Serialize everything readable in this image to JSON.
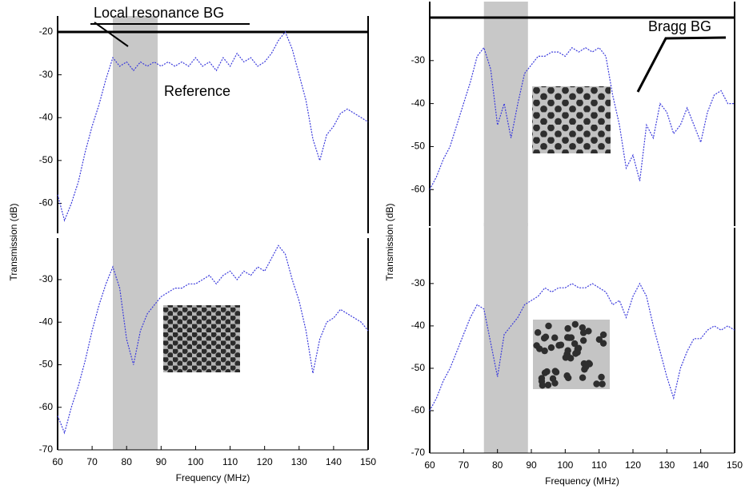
{
  "chart_data": [
    {
      "type": "line",
      "annotations": [
        "Local resonance BG",
        "Reference"
      ],
      "shaded_band": [
        76,
        89
      ],
      "x": [
        60,
        62,
        64,
        66,
        68,
        70,
        72,
        74,
        76,
        78,
        80,
        82,
        84,
        86,
        88,
        90,
        92,
        94,
        96,
        98,
        100,
        102,
        104,
        106,
        108,
        110,
        112,
        114,
        116,
        118,
        120,
        122,
        124,
        126,
        128,
        130,
        132,
        134,
        136,
        138,
        140,
        142,
        144,
        146,
        148,
        150
      ],
      "series": [
        {
          "color": "#3b3bdc",
          "values": [
            -58,
            -64,
            -60,
            -55,
            -48,
            -42,
            -37,
            -31,
            -26,
            -28,
            -27,
            -29,
            -27,
            -28,
            -27,
            -28,
            -27,
            -28,
            -27,
            -28,
            -26,
            -28,
            -27,
            -29,
            -26,
            -28,
            -25,
            -27,
            -26,
            -28,
            -27,
            -25,
            -22,
            -20,
            -24,
            -30,
            -36,
            -45,
            -50,
            -44,
            -42,
            -39,
            -38,
            -39,
            -40,
            -41
          ]
        }
      ],
      "xlim": [
        60,
        150
      ],
      "ylim": [
        -67,
        -20
      ],
      "yticks": [
        -20,
        -30,
        -40,
        -50,
        -60
      ]
    },
    {
      "type": "line",
      "xlabel": "Frequency (MHz)",
      "ylabel": "Transmission (dB)",
      "shaded_band": [
        76,
        89
      ],
      "x": [
        60,
        62,
        64,
        66,
        68,
        70,
        72,
        74,
        76,
        78,
        80,
        82,
        84,
        86,
        88,
        90,
        92,
        94,
        96,
        98,
        100,
        102,
        104,
        106,
        108,
        110,
        112,
        114,
        116,
        118,
        120,
        122,
        124,
        126,
        128,
        130,
        132,
        134,
        136,
        138,
        140,
        142,
        144,
        146,
        148,
        150
      ],
      "series": [
        {
          "color": "#3b3bdc",
          "values": [
            -62,
            -66,
            -60,
            -55,
            -49,
            -42,
            -36,
            -31,
            -27,
            -32,
            -44,
            -50,
            -42,
            -38,
            -36,
            -34,
            -33,
            -32,
            -32,
            -31,
            -31,
            -30,
            -29,
            -31,
            -29,
            -28,
            -30,
            -28,
            -29,
            -27,
            -28,
            -25,
            -22,
            -24,
            -30,
            -35,
            -42,
            -52,
            -44,
            -40,
            -39,
            -37,
            -38,
            -39,
            -40,
            -42
          ]
        }
      ],
      "xlim": [
        60,
        150
      ],
      "xticks": [
        60,
        70,
        80,
        90,
        100,
        110,
        120,
        130,
        140,
        150
      ],
      "ylim": [
        -70,
        -24
      ],
      "yticks": [
        -30,
        -40,
        -50,
        -60,
        -70
      ]
    },
    {
      "type": "line",
      "annotations": [
        "Bragg BG"
      ],
      "shaded_band": [
        76,
        89
      ],
      "x": [
        60,
        62,
        64,
        66,
        68,
        70,
        72,
        74,
        76,
        78,
        80,
        82,
        84,
        86,
        88,
        90,
        92,
        94,
        96,
        98,
        100,
        102,
        104,
        106,
        108,
        110,
        112,
        114,
        116,
        118,
        120,
        122,
        124,
        126,
        128,
        130,
        132,
        134,
        136,
        138,
        140,
        142,
        144,
        146,
        148,
        150
      ],
      "series": [
        {
          "color": "#3b3bdc",
          "values": [
            -60,
            -57,
            -53,
            -50,
            -45,
            -40,
            -35,
            -29,
            -27,
            -32,
            -45,
            -40,
            -48,
            -40,
            -33,
            -31,
            -29,
            -29,
            -28,
            -28,
            -29,
            -27,
            -28,
            -27,
            -28,
            -27,
            -29,
            -38,
            -45,
            -55,
            -52,
            -58,
            -45,
            -48,
            -40,
            -42,
            -47,
            -45,
            -41,
            -45,
            -49,
            -42,
            -38,
            -37,
            -40,
            -40
          ]
        }
      ],
      "xlim": [
        60,
        150
      ],
      "ylim": [
        -68.5,
        -20
      ],
      "yticks": [
        -30,
        -40,
        -50,
        -60
      ]
    },
    {
      "type": "line",
      "xlabel": "Frequency (MHz)",
      "ylabel": "Transmission (dB)",
      "shaded_band": [
        76,
        89
      ],
      "x": [
        60,
        62,
        64,
        66,
        68,
        70,
        72,
        74,
        76,
        78,
        80,
        82,
        84,
        86,
        88,
        90,
        92,
        94,
        96,
        98,
        100,
        102,
        104,
        106,
        108,
        110,
        112,
        114,
        116,
        118,
        120,
        122,
        124,
        126,
        128,
        130,
        132,
        134,
        136,
        138,
        140,
        142,
        144,
        146,
        148,
        150
      ],
      "series": [
        {
          "color": "#3b3bdc",
          "values": [
            -60,
            -57,
            -53,
            -50,
            -46,
            -42,
            -38,
            -35,
            -36,
            -44,
            -52,
            -42,
            -40,
            -38,
            -35,
            -34,
            -33,
            -31,
            -32,
            -31,
            -31,
            -30,
            -31,
            -31,
            -30,
            -31,
            -32,
            -35,
            -34,
            -38,
            -33,
            -30,
            -33,
            -40,
            -46,
            -52,
            -57,
            -50,
            -46,
            -43,
            -43,
            -41,
            -40,
            -41,
            -40,
            -41
          ]
        }
      ],
      "xlim": [
        60,
        150
      ],
      "xticks": [
        60,
        70,
        80,
        90,
        100,
        110,
        120,
        130,
        140,
        150
      ],
      "ylim": [
        -70,
        -20.6
      ],
      "yticks": [
        -30,
        -40,
        -50,
        -60,
        -70
      ]
    }
  ]
}
